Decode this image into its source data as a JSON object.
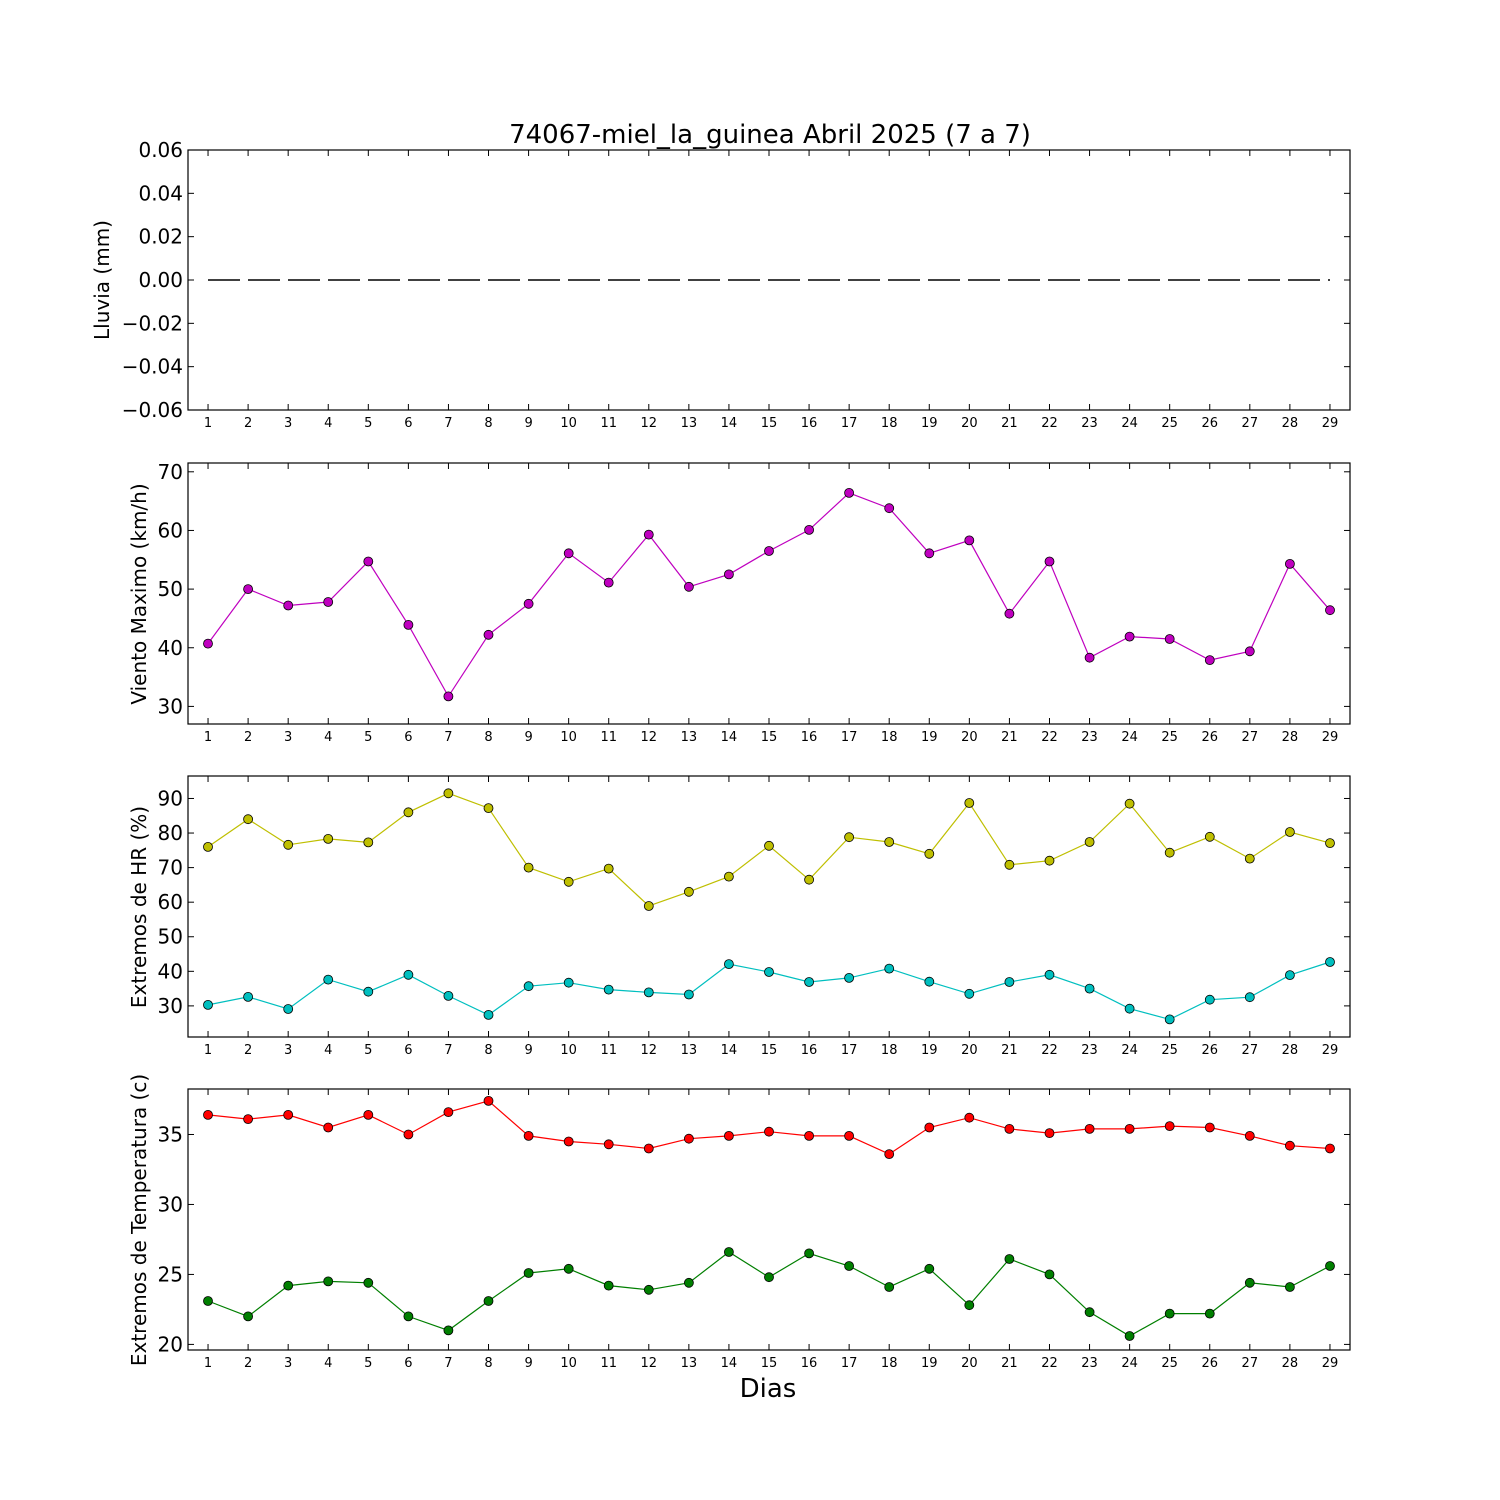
{
  "title": "74067-miel_la_guinea Abril 2025  (7 a 7)",
  "xlabel": "Dias",
  "chart_data": [
    {
      "type": "line",
      "ylabel": "Lluvia (mm)",
      "x": [
        1,
        2,
        3,
        4,
        5,
        6,
        7,
        8,
        9,
        10,
        11,
        12,
        13,
        14,
        15,
        16,
        17,
        18,
        19,
        20,
        21,
        22,
        23,
        24,
        25,
        26,
        27,
        28,
        29
      ],
      "ylim": [
        -0.06,
        0.06
      ],
      "yticks": [
        -0.06,
        -0.04,
        -0.02,
        0.0,
        0.02,
        0.04,
        0.06
      ],
      "ytick_labels": [
        "−0.06",
        "−0.04",
        "−0.02",
        "0.00",
        "0.02",
        "0.04",
        "0.06"
      ],
      "grid": false,
      "series": [
        {
          "color": "#000000",
          "style": "dashed",
          "markers": false,
          "values": [
            0,
            0,
            0,
            0,
            0,
            0,
            0,
            0,
            0,
            0,
            0,
            0,
            0,
            0,
            0,
            0,
            0,
            0,
            0,
            0,
            0,
            0,
            0,
            0,
            0,
            0,
            0,
            0,
            0
          ]
        }
      ]
    },
    {
      "type": "line",
      "ylabel": "Viento Maximo (km/h)",
      "x": [
        1,
        2,
        3,
        4,
        5,
        6,
        7,
        8,
        9,
        10,
        11,
        12,
        13,
        14,
        15,
        16,
        17,
        18,
        19,
        20,
        21,
        22,
        23,
        24,
        25,
        26,
        27,
        28,
        29
      ],
      "ylim": [
        27,
        71.5
      ],
      "yticks": [
        30,
        40,
        50,
        60,
        70
      ],
      "ytick_labels": [
        "30",
        "40",
        "50",
        "60",
        "70"
      ],
      "grid": false,
      "series": [
        {
          "color": "#bf00bf",
          "style": "solid",
          "markers": true,
          "values": [
            40.7,
            50.0,
            47.2,
            47.8,
            54.7,
            43.9,
            31.7,
            42.2,
            47.5,
            56.1,
            51.1,
            59.3,
            50.4,
            52.5,
            56.5,
            60.1,
            66.4,
            63.8,
            56.1,
            58.3,
            45.8,
            54.7,
            38.3,
            41.9,
            41.5,
            37.9,
            39.4,
            54.3,
            46.4
          ]
        }
      ]
    },
    {
      "type": "line",
      "ylabel": "Extremos de HR (%)",
      "x": [
        1,
        2,
        3,
        4,
        5,
        6,
        7,
        8,
        9,
        10,
        11,
        12,
        13,
        14,
        15,
        16,
        17,
        18,
        19,
        20,
        21,
        22,
        23,
        24,
        25,
        26,
        27,
        28,
        29
      ],
      "ylim": [
        21,
        96.5
      ],
      "yticks": [
        30,
        40,
        50,
        60,
        70,
        80,
        90
      ],
      "ytick_labels": [
        "30",
        "40",
        "50",
        "60",
        "70",
        "80",
        "90"
      ],
      "grid": false,
      "series": [
        {
          "color": "#bfbf00",
          "style": "solid",
          "markers": true,
          "values": [
            76.0,
            84.0,
            76.6,
            78.3,
            77.3,
            86.0,
            91.5,
            87.2,
            70.0,
            65.9,
            69.7,
            58.9,
            63.0,
            67.4,
            76.3,
            66.5,
            78.8,
            77.4,
            74.0,
            88.7,
            70.8,
            72.0,
            77.4,
            88.5,
            74.3,
            78.9,
            72.6,
            80.3,
            77.1
          ]
        },
        {
          "color": "#00bfbf",
          "style": "solid",
          "markers": true,
          "values": [
            30.3,
            32.6,
            29.1,
            37.6,
            34.1,
            39.0,
            32.9,
            27.4,
            35.7,
            36.7,
            34.7,
            33.9,
            33.3,
            42.1,
            39.8,
            36.9,
            38.1,
            40.8,
            37.0,
            33.5,
            36.9,
            39.0,
            35.0,
            29.2,
            26.1,
            31.8,
            32.5,
            38.9,
            42.7
          ]
        }
      ]
    },
    {
      "type": "line",
      "ylabel": "Extremos de Temperatura (c)",
      "x": [
        1,
        2,
        3,
        4,
        5,
        6,
        7,
        8,
        9,
        10,
        11,
        12,
        13,
        14,
        15,
        16,
        17,
        18,
        19,
        20,
        21,
        22,
        23,
        24,
        25,
        26,
        27,
        28,
        29
      ],
      "ylim": [
        19.6,
        38.25
      ],
      "yticks": [
        20,
        25,
        30,
        35
      ],
      "ytick_labels": [
        "20",
        "25",
        "30",
        "35"
      ],
      "grid": false,
      "series": [
        {
          "color": "#ff0000",
          "style": "solid",
          "markers": true,
          "values": [
            36.4,
            36.1,
            36.4,
            35.5,
            36.4,
            35.0,
            36.6,
            37.4,
            34.9,
            34.5,
            34.3,
            34.0,
            34.7,
            34.9,
            35.2,
            34.9,
            34.9,
            33.6,
            35.5,
            36.2,
            35.4,
            35.1,
            35.4,
            35.4,
            35.6,
            35.5,
            34.9,
            34.2,
            34.0
          ]
        },
        {
          "color": "#007f00",
          "style": "solid",
          "markers": true,
          "values": [
            23.1,
            22.0,
            24.2,
            24.5,
            24.4,
            22.0,
            21.0,
            23.1,
            25.1,
            25.4,
            24.2,
            23.9,
            24.4,
            26.6,
            24.8,
            26.5,
            25.6,
            24.1,
            25.4,
            22.8,
            26.1,
            25.0,
            22.3,
            20.6,
            22.2,
            22.2,
            24.4,
            24.1,
            25.6
          ]
        }
      ]
    }
  ]
}
